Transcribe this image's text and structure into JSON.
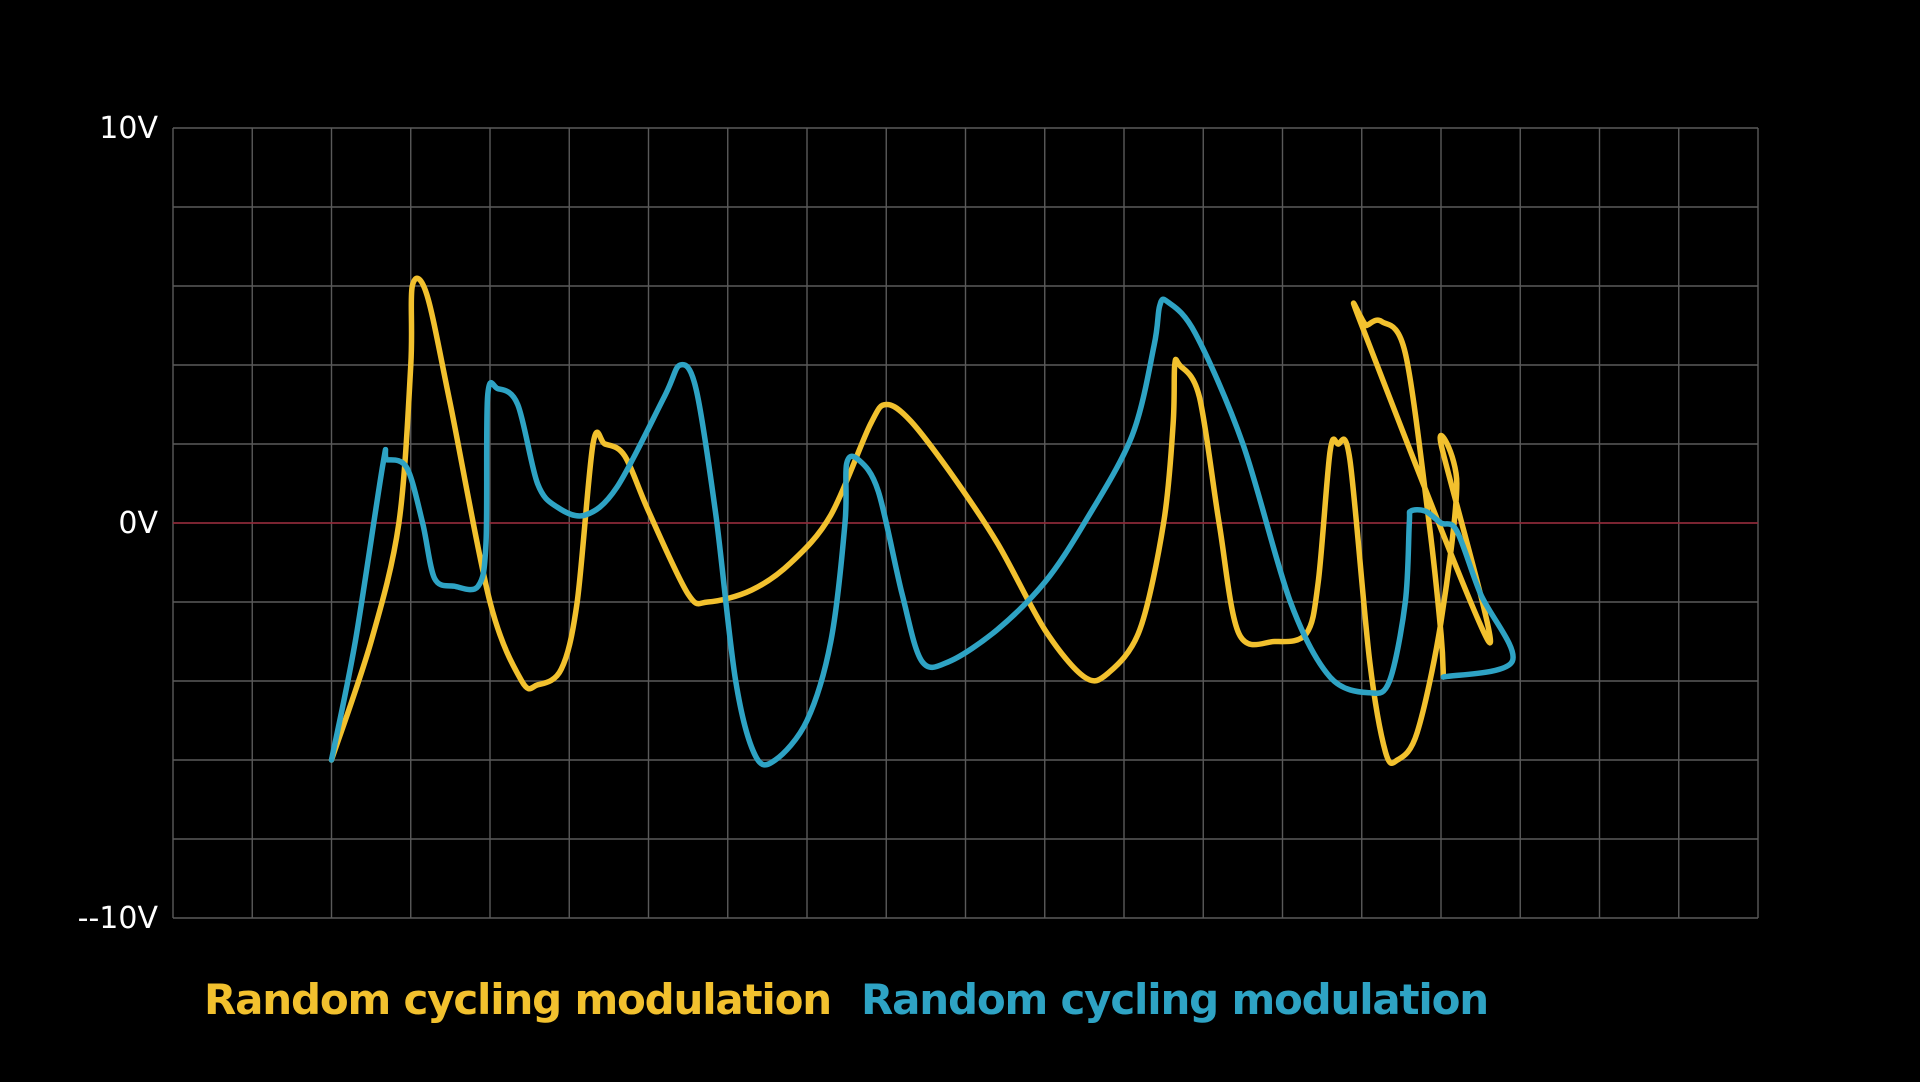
{
  "chart_data": {
    "type": "line",
    "xlabel": "",
    "ylabel": "",
    "title": "",
    "ylim": [
      -10,
      10
    ],
    "xlim": [
      0,
      20
    ],
    "grid": true,
    "y_tick_labels": [
      {
        "value": 10,
        "label": "10V"
      },
      {
        "value": 0,
        "label": "0V"
      },
      {
        "value": -10,
        "label": "--10V"
      }
    ],
    "zero_line_color": "#8c2a38",
    "grid_color": "#5a5a5a",
    "legend_placement": "bottom-left",
    "series": [
      {
        "name": "Random cycling modulation",
        "color": "#f2c12e",
        "points": [
          [
            2,
            -6
          ],
          [
            2.5,
            -3
          ],
          [
            2.85,
            0
          ],
          [
            3,
            4
          ],
          [
            3.02,
            6
          ],
          [
            3.2,
            5.8
          ],
          [
            3.5,
            3
          ],
          [
            4,
            -2
          ],
          [
            4.4,
            -4
          ],
          [
            4.6,
            -4.1
          ],
          [
            4.9,
            -3.7
          ],
          [
            5.1,
            -2
          ],
          [
            5.3,
            2
          ],
          [
            5.45,
            2
          ],
          [
            5.7,
            1.7
          ],
          [
            6,
            0.3
          ],
          [
            6.5,
            -1.8
          ],
          [
            6.75,
            -2
          ],
          [
            7.3,
            -1.7
          ],
          [
            7.8,
            -1
          ],
          [
            8.3,
            0.2
          ],
          [
            8.8,
            2.5
          ],
          [
            9,
            3
          ],
          [
            9.3,
            2.6
          ],
          [
            9.8,
            1.3
          ],
          [
            10.4,
            -0.5
          ],
          [
            11,
            -2.7
          ],
          [
            11.5,
            -3.9
          ],
          [
            11.8,
            -3.8
          ],
          [
            12.2,
            -2.7
          ],
          [
            12.5,
            0
          ],
          [
            12.62,
            2.5
          ],
          [
            12.64,
            4
          ],
          [
            12.7,
            4
          ],
          [
            12.95,
            3.2
          ],
          [
            13.2,
            0
          ],
          [
            13.45,
            -2.8
          ],
          [
            13.9,
            -3
          ],
          [
            14.3,
            -2.8
          ],
          [
            14.45,
            -1.5
          ],
          [
            14.6,
            1.8
          ],
          [
            14.7,
            2
          ],
          [
            14.85,
            1.6
          ],
          [
            15.1,
            -3.5
          ],
          [
            15.3,
            -5.8
          ],
          [
            15.45,
            -6
          ],
          [
            15.7,
            -5.3
          ],
          [
            16,
            -2.5
          ],
          [
            16.2,
            1
          ],
          [
            16,
            2
          ],
          [
            16.6,
            -3
          ],
          [
            15,
            5
          ],
          [
            15.06,
            5
          ],
          [
            15.25,
            5.1
          ],
          [
            15.55,
            4.3
          ],
          [
            15.85,
            0
          ],
          [
            16,
            -2.8
          ],
          [
            16.03,
            -3.9
          ]
        ]
      },
      {
        "name": "Random cycling modulation",
        "color": "#2ea3c4",
        "points": [
          [
            2,
            -6
          ],
          [
            2.3,
            -3
          ],
          [
            2.65,
            1.5
          ],
          [
            2.7,
            1.6
          ],
          [
            2.95,
            1.4
          ],
          [
            3.15,
            0
          ],
          [
            3.3,
            -1.4
          ],
          [
            3.55,
            -1.6
          ],
          [
            3.85,
            -1.6
          ],
          [
            3.95,
            -0.5
          ],
          [
            3.97,
            3.2
          ],
          [
            4.1,
            3.4
          ],
          [
            4.35,
            3
          ],
          [
            4.6,
            1
          ],
          [
            4.85,
            0.4
          ],
          [
            5.2,
            0.2
          ],
          [
            5.6,
            0.9
          ],
          [
            6.2,
            3.2
          ],
          [
            6.4,
            4
          ],
          [
            6.6,
            3.4
          ],
          [
            6.85,
            0.2
          ],
          [
            7.1,
            -4
          ],
          [
            7.35,
            -5.9
          ],
          [
            7.6,
            -6
          ],
          [
            8,
            -5
          ],
          [
            8.3,
            -3
          ],
          [
            8.48,
            0
          ],
          [
            8.5,
            1.5
          ],
          [
            8.65,
            1.6
          ],
          [
            8.9,
            0.8
          ],
          [
            9.2,
            -1.8
          ],
          [
            9.45,
            -3.5
          ],
          [
            9.8,
            -3.5
          ],
          [
            10.4,
            -2.7
          ],
          [
            11,
            -1.5
          ],
          [
            11.5,
            0
          ],
          [
            12.1,
            2.2
          ],
          [
            12.38,
            4.5
          ],
          [
            12.45,
            5.5
          ],
          [
            12.55,
            5.6
          ],
          [
            12.9,
            4.8
          ],
          [
            13.5,
            2
          ],
          [
            14.1,
            -2
          ],
          [
            14.6,
            -3.9
          ],
          [
            15.1,
            -4.3
          ],
          [
            15.35,
            -4
          ],
          [
            15.55,
            -2
          ],
          [
            15.6,
            0
          ],
          [
            15.62,
            0.3
          ],
          [
            15.8,
            0.3
          ],
          [
            16,
            0
          ],
          [
            16.2,
            -0.2
          ],
          [
            16.5,
            -1.8
          ],
          [
            16.9,
            -3.5
          ],
          [
            16.03,
            -3.9
          ]
        ]
      }
    ]
  }
}
